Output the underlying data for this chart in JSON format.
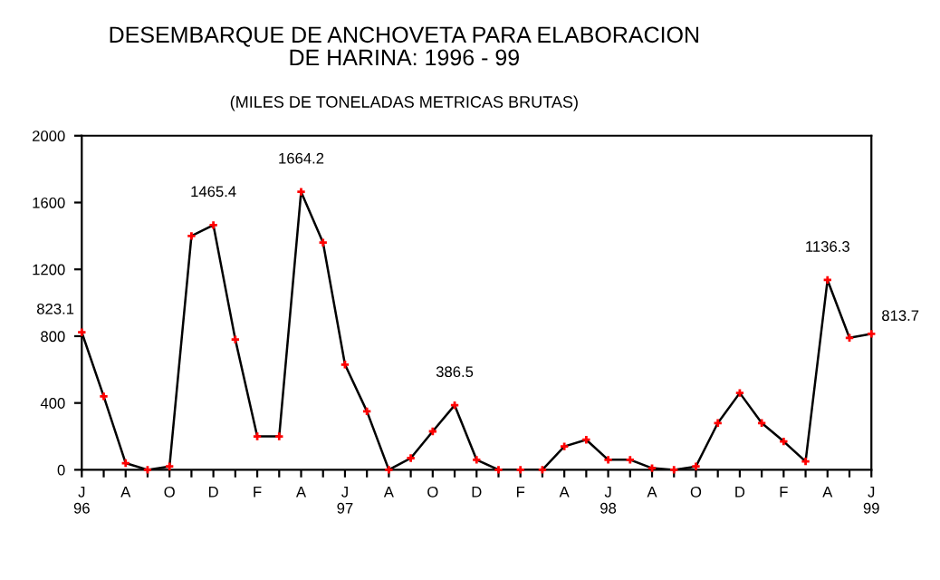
{
  "chart_data": {
    "type": "line",
    "title": "DESEMBARQUE DE ANCHOVETA PARA ELABORACION\nDE HARINA: 1996 - 99",
    "subtitle": "(MILES DE TONELADAS METRICAS BRUTAS)",
    "categories": [
      "J\n96",
      null,
      "A",
      null,
      "O",
      null,
      "D",
      null,
      "F",
      null,
      "A",
      null,
      "J\n97",
      null,
      "A",
      null,
      "O",
      null,
      "D",
      null,
      "F",
      null,
      "A",
      null,
      "J\n98",
      null,
      "A",
      null,
      "O",
      null,
      "D",
      null,
      "F",
      null,
      "A",
      null,
      "J\n99"
    ],
    "series": [
      {
        "color": "#000000",
        "colors": [
          "#ff0000",
          "#ff0000",
          "#ff0000",
          "#ff0000",
          "#ff0000",
          "#ff0000",
          "#ff0000",
          "#ff0000",
          "#ff0000",
          "#ff0000",
          "#ff0000",
          "#ff0000",
          "#ff0000",
          "#ff0000",
          "#ff0000",
          "#ff0000",
          "#ff0000",
          "#ff0000",
          "#ff0000",
          "#ff0000",
          "#ff0000",
          "#ff0000",
          "#ff0000",
          "#ff0000",
          "#ff0000",
          "#ff0000",
          "#ff0000",
          "#ff0000",
          "#ff0000",
          "#ff0000",
          "#ff0000",
          "#ff0000",
          "#ff0000",
          "#ff0000",
          "#ff0000",
          "#ff0000",
          "#ff0000"
        ],
        "values": [
          823.1,
          440,
          40,
          0,
          20,
          1400,
          1465.4,
          780,
          200,
          200,
          1664.2,
          1360,
          630,
          350,
          0,
          70,
          230,
          386.5,
          60,
          0,
          0,
          0,
          140,
          180,
          60,
          60,
          10,
          0,
          20,
          280,
          460,
          280,
          170,
          50,
          1136.3,
          790,
          813.7
        ],
        "value_labels": [
          "823.1",
          null,
          null,
          null,
          null,
          null,
          "1465.4",
          null,
          null,
          null,
          "1664.2",
          null,
          null,
          null,
          null,
          null,
          null,
          "386.5",
          null,
          null,
          null,
          null,
          null,
          null,
          null,
          null,
          null,
          null,
          null,
          null,
          null,
          null,
          null,
          null,
          "1136.3",
          null,
          "813.7"
        ]
      }
    ],
    "ylim": [
      0,
      2000
    ],
    "yticks": [
      0,
      400,
      800,
      1200,
      1600,
      2000
    ],
    "grid": false,
    "legend": false,
    "marker": "cross",
    "line_style": "solid"
  }
}
